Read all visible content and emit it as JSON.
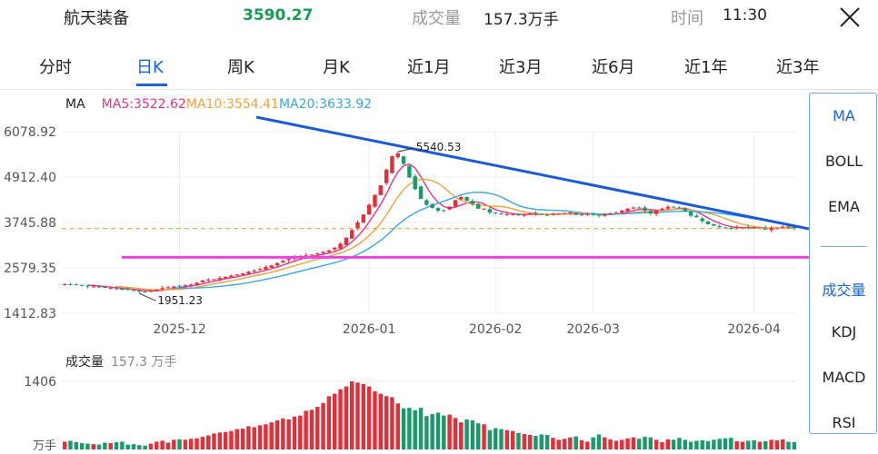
{
  "header": {
    "stock_name": "航天装备",
    "price": "3590.27",
    "volume_label": "成交量",
    "volume_value": "157.3万手",
    "time_label": "时间",
    "time_value": "11:30"
  },
  "tabs": [
    {
      "label": "分时"
    },
    {
      "label": "日K"
    },
    {
      "label": "周K"
    },
    {
      "label": "月K"
    },
    {
      "label": "近1月"
    },
    {
      "label": "近3月"
    },
    {
      "label": "近6月"
    },
    {
      "label": "近1年"
    },
    {
      "label": "近3年"
    }
  ],
  "active_tab": "日K",
  "ma_legend": {
    "label": "MA",
    "ma5": "MA5:3522.62",
    "ma10": "MA10:3554.41",
    "ma20": "MA20:3633.92",
    "colors": {
      "ma5": "#e8358a",
      "ma10": "#f2a33a",
      "ma20": "#3aa6e8"
    }
  },
  "side_panel": {
    "main_indicators": [
      "MA",
      "BOLL",
      "EMA"
    ],
    "sub_indicators": [
      "成交量",
      "KDJ",
      "MACD",
      "RSI"
    ],
    "active_main": "MA",
    "active_sub": "成交量"
  },
  "volume_legend": {
    "label": "成交量",
    "value": "157.3 万手"
  },
  "colors": {
    "up": "#e0303a",
    "down": "#1a9a6a",
    "accent": "#1a64d6",
    "trendline": "#1a5ad6",
    "support": "#f040e0",
    "current_price_line": "#f0a050"
  },
  "chart_data": {
    "type": "candlestick",
    "y_ticks": [
      "6078.92",
      "4912.40",
      "3745.88",
      "2579.35",
      "1412.83"
    ],
    "ylim": [
      1412.83,
      6078.92
    ],
    "x_ticks": [
      "2025-12",
      "2026-01",
      "2026-02",
      "2026-03",
      "2026-04"
    ],
    "annotations": {
      "high": "5540.53",
      "low": "1951.23"
    },
    "current_price": 3590.27,
    "support_level": 2850,
    "volume_y_tick": "1406",
    "volume_unit": "万手",
    "close_prices": [
      2160,
      2150,
      2140,
      2130,
      2110,
      2100,
      2080,
      2070,
      2060,
      2040,
      2030,
      2010,
      1990,
      1980,
      1960,
      2000,
      2020,
      2060,
      2080,
      2100,
      2110,
      2130,
      2150,
      2200,
      2260,
      2280,
      2290,
      2320,
      2350,
      2380,
      2410,
      2440,
      2480,
      2510,
      2550,
      2600,
      2640,
      2700,
      2760,
      2810,
      2850,
      2870,
      2900,
      2920,
      2950,
      2990,
      3030,
      3100,
      3200,
      3350,
      3550,
      3750,
      3950,
      4200,
      4450,
      4700,
      5100,
      5450,
      5520,
      5250,
      4900,
      4600,
      4350,
      4200,
      4120,
      4050,
      4050,
      4150,
      4320,
      4400,
      4300,
      4220,
      4100,
      4100,
      4000,
      3980,
      3960,
      3960,
      3960,
      3930,
      3950,
      3980,
      3960,
      3950,
      3930,
      3960,
      3980,
      3990,
      4000,
      3940,
      3960,
      3960,
      3940,
      3920,
      3960,
      3980,
      4000,
      4050,
      4100,
      4130,
      4120,
      4050,
      3980,
      4050,
      4100,
      4150,
      4140,
      4120,
      4030,
      3920,
      3880,
      3780,
      3700,
      3660,
      3620,
      3610,
      3600,
      3620,
      3610,
      3620,
      3600,
      3610,
      3560,
      3600,
      3610,
      3640,
      3620,
      3590
    ],
    "volumes": [
      160,
      180,
      150,
      130,
      120,
      110,
      100,
      140,
      130,
      150,
      160,
      100,
      110,
      90,
      80,
      120,
      160,
      180,
      140,
      200,
      210,
      200,
      220,
      230,
      260,
      290,
      330,
      350,
      360,
      380,
      420,
      430,
      480,
      460,
      500,
      520,
      560,
      600,
      640,
      620,
      680,
      700,
      800,
      820,
      880,
      960,
      1100,
      1150,
      1240,
      1300,
      1406,
      1380,
      1350,
      1300,
      1200,
      1150,
      1100,
      1080,
      950,
      850,
      860,
      810,
      860,
      690,
      730,
      760,
      700,
      720,
      650,
      560,
      620,
      600,
      540,
      520,
      400,
      440,
      420,
      400,
      380,
      340,
      320,
      300,
      280,
      310,
      300,
      240,
      200,
      220,
      250,
      270,
      190,
      160,
      250,
      310,
      250,
      210,
      180,
      200,
      230,
      250,
      220,
      260,
      250,
      200,
      150,
      210,
      200,
      240,
      200,
      160,
      180,
      190,
      170,
      200,
      220,
      230,
      240,
      170,
      160,
      180,
      190,
      160,
      170,
      200,
      190,
      210,
      160,
      150
    ]
  }
}
